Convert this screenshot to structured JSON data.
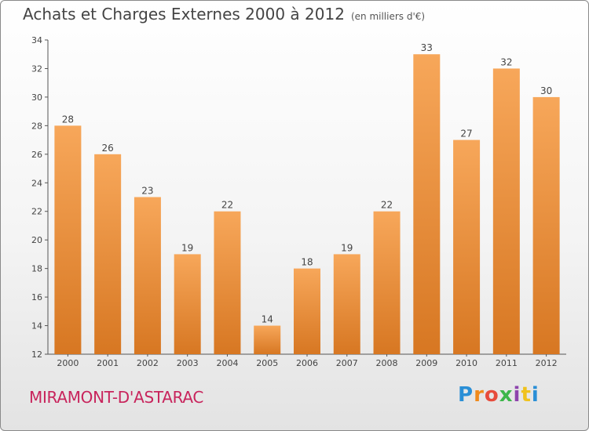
{
  "header": {
    "title": "Achats et Charges Externes 2000 à 2012",
    "unit": "(en milliers d'€)"
  },
  "footer": {
    "commune": "MIRAMONT-D'ASTARAC",
    "logo": "Proxiti"
  },
  "colors": {
    "bar_top": "#f7a75a",
    "bar_bottom": "#d77722",
    "text": "#444444",
    "commune": "#c8245c"
  },
  "chart_data": {
    "type": "bar",
    "title": "Achats et Charges Externes 2000 à 2012",
    "subtitle": "(en milliers d'€)",
    "categories": [
      "2000",
      "2001",
      "2002",
      "2003",
      "2004",
      "2005",
      "2006",
      "2007",
      "2008",
      "2009",
      "2010",
      "2011",
      "2012"
    ],
    "values": [
      28,
      26,
      23,
      19,
      22,
      14,
      18,
      19,
      22,
      33,
      27,
      32,
      30
    ],
    "ylim": [
      12,
      34
    ],
    "yticks": [
      12,
      14,
      16,
      18,
      20,
      22,
      24,
      26,
      28,
      30,
      32,
      34
    ],
    "grid": false,
    "data_labels": true
  }
}
